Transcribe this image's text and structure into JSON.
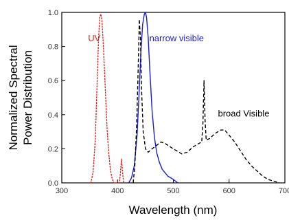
{
  "chart_data": {
    "type": "line",
    "xlabel": "Wavelength (nm)",
    "ylabel_lines": [
      "Normalized Spectral",
      "Power Distribution"
    ],
    "xlim": [
      300,
      700
    ],
    "ylim": [
      0.0,
      1.0
    ],
    "xticks": [
      300,
      400,
      500,
      600,
      700
    ],
    "yticks": [
      0.0,
      0.2,
      0.4,
      0.6,
      0.8,
      1.0
    ],
    "ytick_labels": [
      "0.0",
      "0.2",
      "0.4",
      "0.6",
      "0.8",
      "1.0"
    ],
    "grid": false,
    "series": [
      {
        "name": "UV",
        "color": "#e02020",
        "style": "dotted",
        "points": [
          [
            352,
            0.0
          ],
          [
            356,
            0.06
          ],
          [
            360,
            0.25
          ],
          [
            363,
            0.55
          ],
          [
            366,
            0.85
          ],
          [
            368,
            0.97
          ],
          [
            370,
            0.99
          ],
          [
            372,
            0.95
          ],
          [
            375,
            0.78
          ],
          [
            378,
            0.55
          ],
          [
            381,
            0.33
          ],
          [
            384,
            0.18
          ],
          [
            387,
            0.08
          ],
          [
            390,
            0.03
          ],
          [
            393,
            0.0
          ],
          [
            403,
            0.0
          ],
          [
            405,
            0.05
          ],
          [
            407,
            0.14
          ],
          [
            409,
            0.06
          ],
          [
            411,
            0.0
          ]
        ]
      },
      {
        "name": "narrow visible",
        "color": "#1a1adb",
        "style": "solid",
        "points": [
          [
            420,
            0.0
          ],
          [
            425,
            0.03
          ],
          [
            430,
            0.1
          ],
          [
            435,
            0.28
          ],
          [
            439,
            0.55
          ],
          [
            442,
            0.78
          ],
          [
            445,
            0.93
          ],
          [
            448,
            0.99
          ],
          [
            450,
            1.0
          ],
          [
            452,
            0.97
          ],
          [
            455,
            0.85
          ],
          [
            458,
            0.65
          ],
          [
            462,
            0.42
          ],
          [
            466,
            0.27
          ],
          [
            470,
            0.18
          ],
          [
            475,
            0.12
          ],
          [
            480,
            0.08
          ],
          [
            490,
            0.04
          ],
          [
            500,
            0.02
          ],
          [
            508,
            0.0
          ]
        ]
      },
      {
        "name": "broad Visible",
        "color": "#000000",
        "style": "dashed",
        "points": [
          [
            428,
            0.0
          ],
          [
            431,
            0.1
          ],
          [
            434,
            0.32
          ],
          [
            436,
            0.55
          ],
          [
            438,
            0.8
          ],
          [
            439,
            0.96
          ],
          [
            441,
            0.85
          ],
          [
            443,
            0.55
          ],
          [
            446,
            0.3
          ],
          [
            450,
            0.2
          ],
          [
            455,
            0.18
          ],
          [
            462,
            0.2
          ],
          [
            470,
            0.22
          ],
          [
            478,
            0.24
          ],
          [
            486,
            0.23
          ],
          [
            495,
            0.21
          ],
          [
            505,
            0.19
          ],
          [
            515,
            0.17
          ],
          [
            525,
            0.18
          ],
          [
            535,
            0.21
          ],
          [
            545,
            0.23
          ],
          [
            551,
            0.24
          ],
          [
            553,
            0.35
          ],
          [
            555,
            0.6
          ],
          [
            557,
            0.36
          ],
          [
            559,
            0.25
          ],
          [
            565,
            0.26
          ],
          [
            575,
            0.29
          ],
          [
            585,
            0.31
          ],
          [
            592,
            0.31
          ],
          [
            600,
            0.28
          ],
          [
            610,
            0.24
          ],
          [
            620,
            0.19
          ],
          [
            630,
            0.14
          ],
          [
            640,
            0.1
          ],
          [
            650,
            0.07
          ],
          [
            660,
            0.04
          ],
          [
            670,
            0.02
          ],
          [
            680,
            0.01
          ],
          [
            690,
            0.0
          ]
        ]
      }
    ],
    "annotations": [
      {
        "text": "UV",
        "color": "#e02020",
        "x": 347,
        "y": 0.83
      },
      {
        "text": "narrow visible",
        "color": "#1a1adb",
        "x": 457,
        "y": 0.83
      },
      {
        "text": "broad Visible",
        "color": "#000000",
        "x": 580,
        "y": 0.39
      }
    ]
  }
}
